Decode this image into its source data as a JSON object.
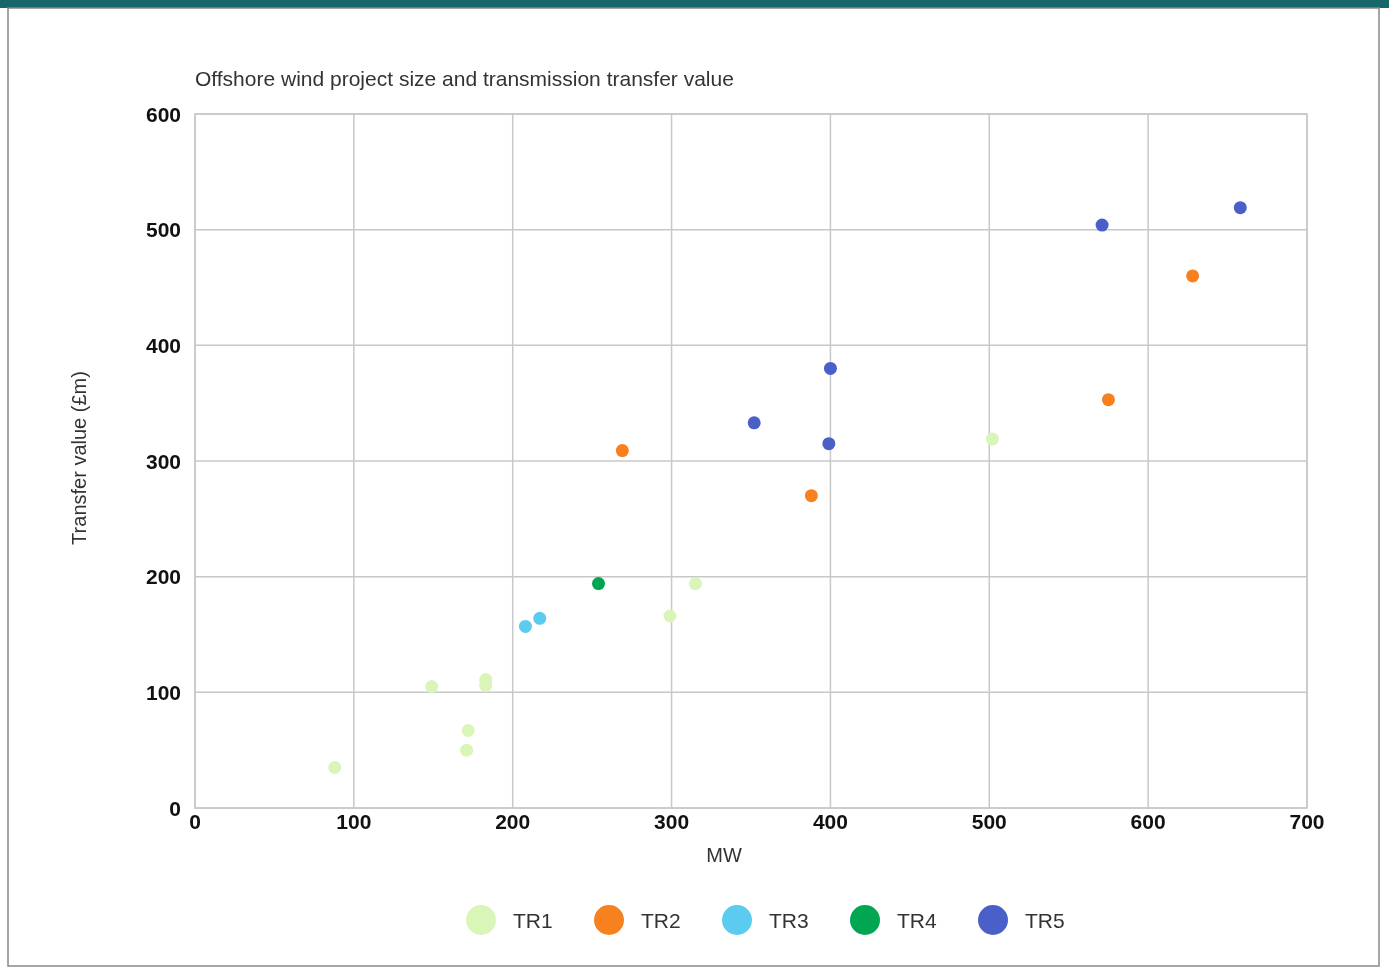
{
  "chart_data": {
    "type": "scatter",
    "title": "Offshore wind project size and transmission transfer value",
    "xlabel": "MW",
    "ylabel": "Transfer value (£m)",
    "xlim": [
      0,
      700
    ],
    "xticks": [
      0,
      100,
      200,
      300,
      400,
      500,
      600,
      700
    ],
    "ylim": [
      0,
      600
    ],
    "yticks": [
      0,
      100,
      200,
      300,
      400,
      500,
      600
    ],
    "grid": true,
    "legend": "bottom",
    "marker": "circle",
    "series": [
      {
        "name": "TR1",
        "color": "#d9f5b8",
        "x": [
          88,
          149,
          183,
          183,
          172,
          171,
          299,
          315,
          502
        ],
        "values": [
          35,
          105,
          111,
          106,
          67,
          50,
          166,
          194,
          319
        ]
      },
      {
        "name": "TR2",
        "color": "#f7801f",
        "x": [
          269,
          388,
          575,
          628
        ],
        "values": [
          309,
          270,
          353,
          460
        ]
      },
      {
        "name": "TR3",
        "color": "#5ccbf0",
        "x": [
          208,
          217
        ],
        "values": [
          157,
          164
        ]
      },
      {
        "name": "TR4",
        "color": "#00a651",
        "x": [
          254
        ],
        "values": [
          194
        ]
      },
      {
        "name": "TR5",
        "color": "#4b5fc9",
        "x": [
          352,
          400,
          399,
          571,
          658
        ],
        "values": [
          333,
          380,
          315,
          504,
          519
        ]
      }
    ]
  }
}
